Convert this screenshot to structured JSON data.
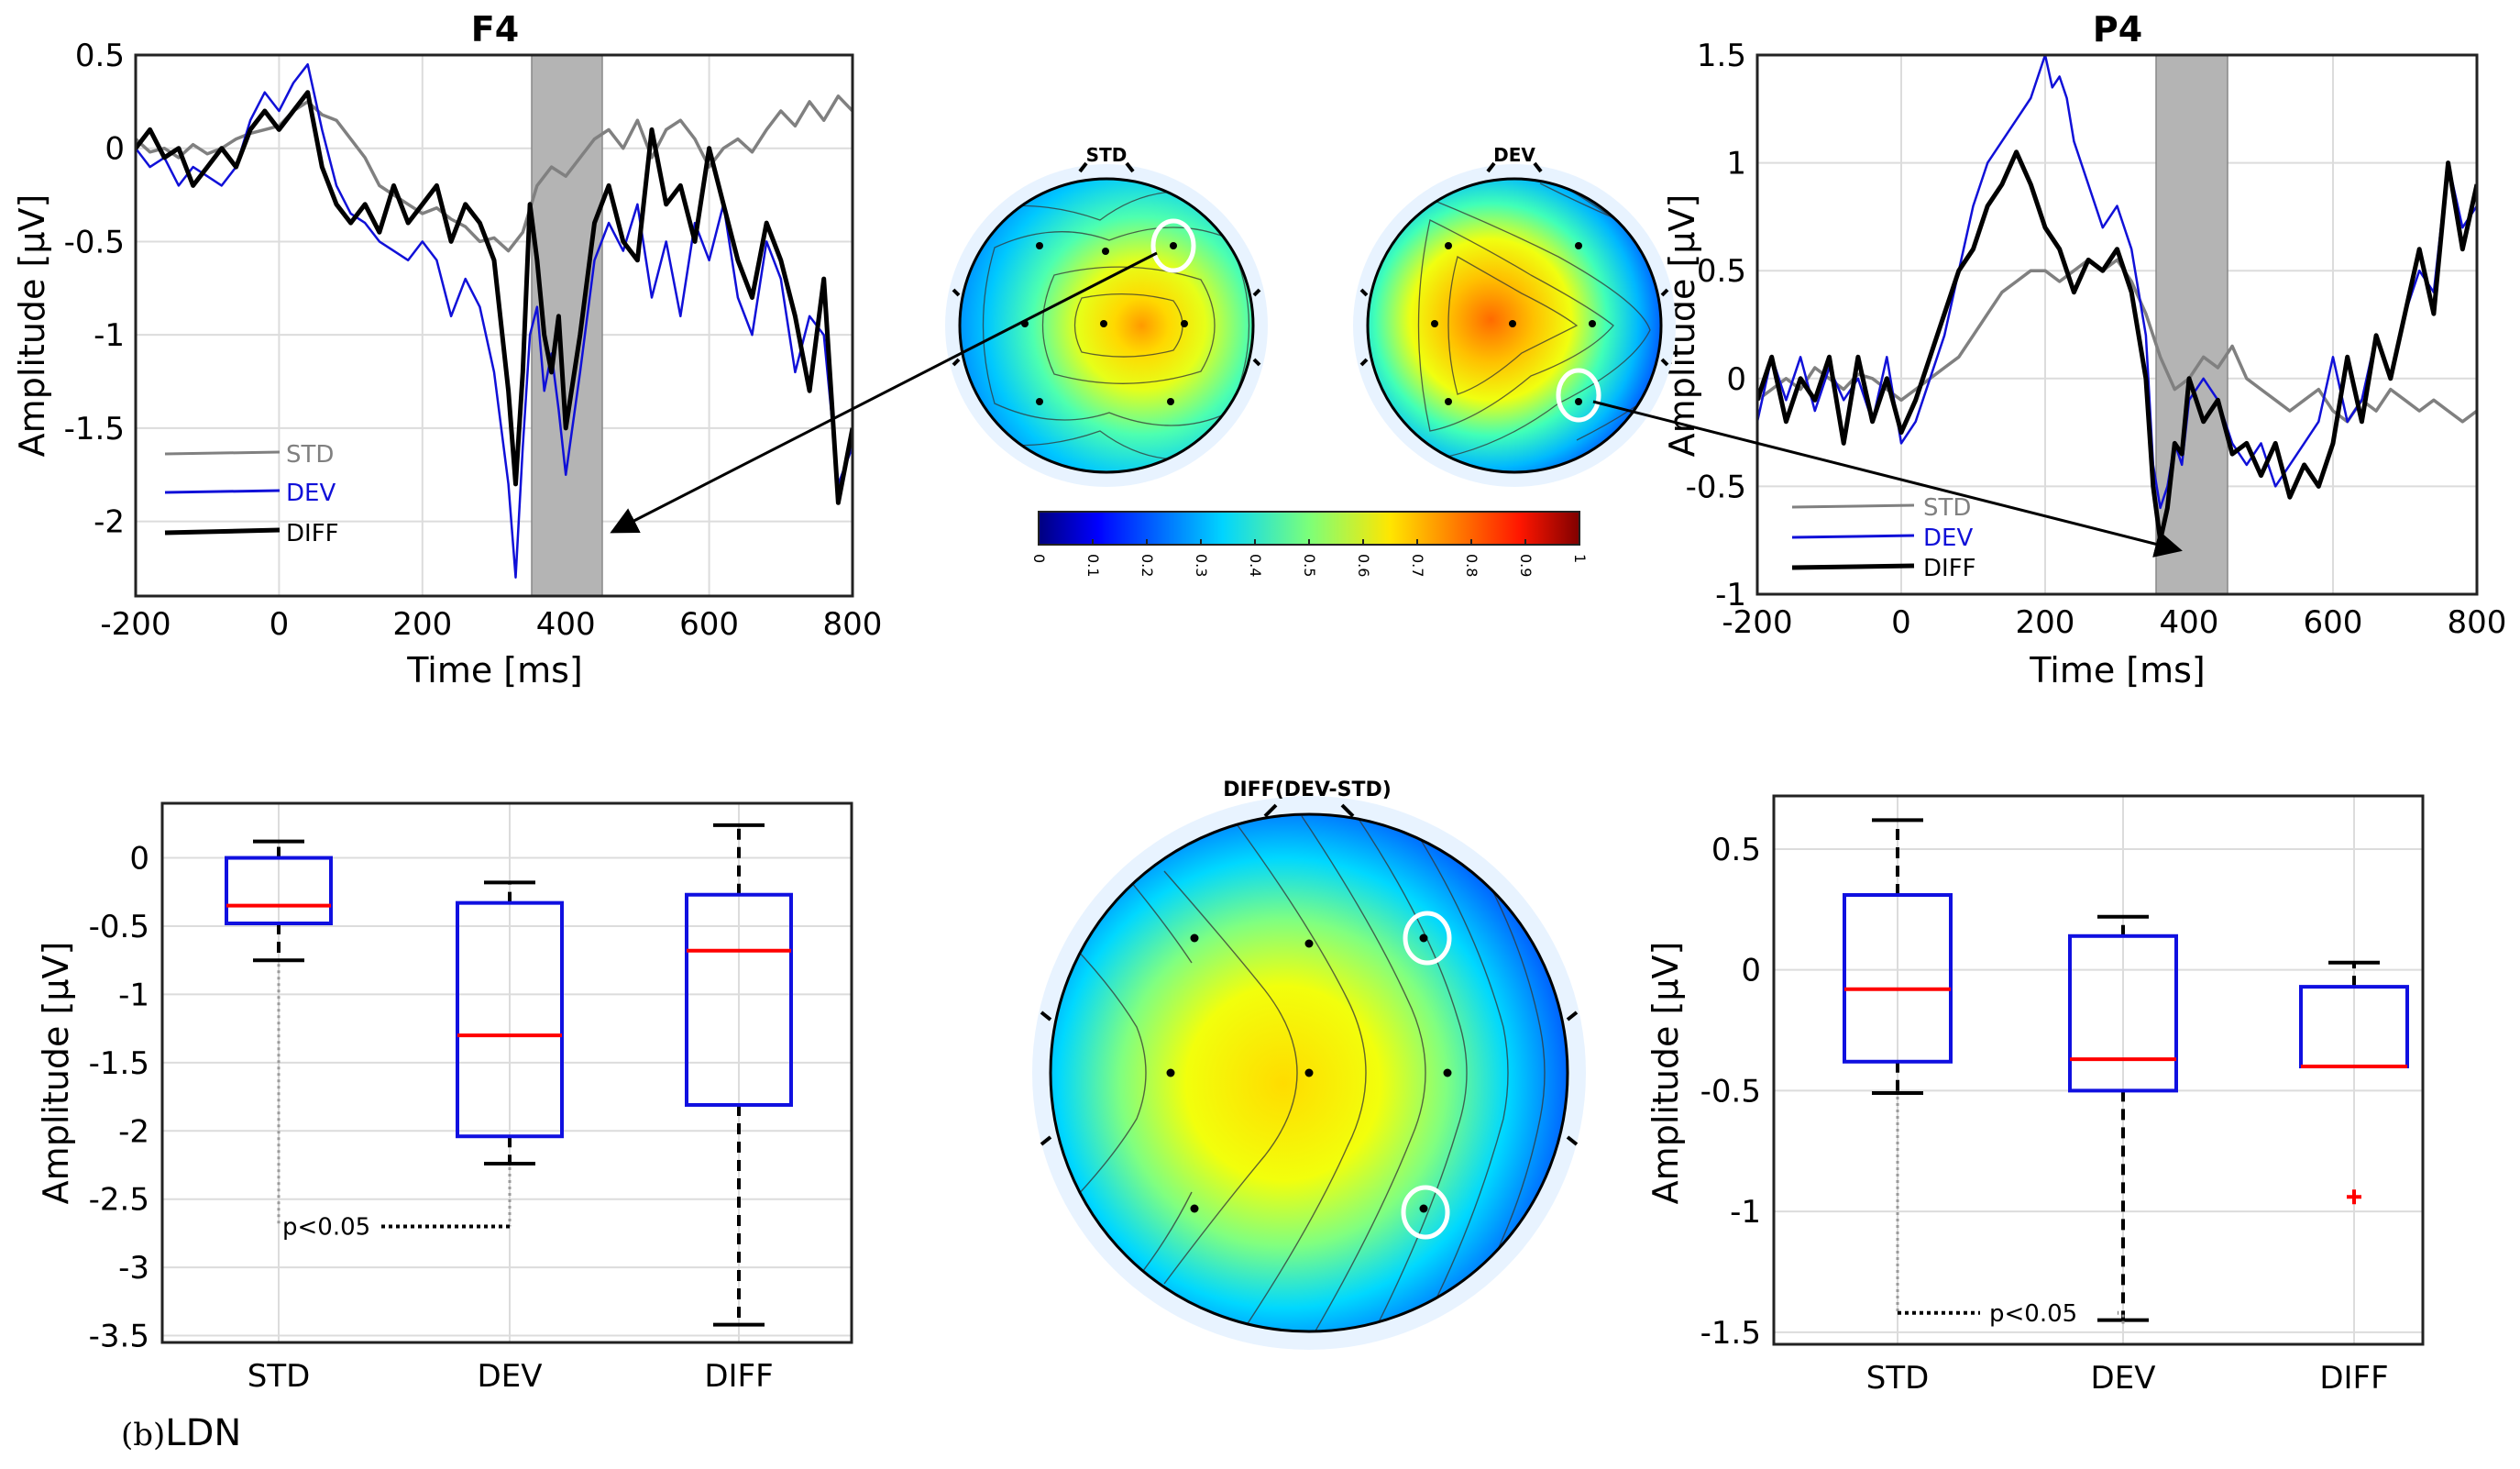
{
  "caption": {
    "prefix": "(b)",
    "text": "LDN"
  },
  "colors": {
    "std": "#808080",
    "dev": "#1010d8",
    "diff": "#000000",
    "median": "#ff0000",
    "box": "#1010e0",
    "window": "#b4b4b4"
  },
  "chart_data": [
    {
      "id": "f4",
      "type": "line",
      "title": "F4",
      "xlabel": "Time [ms]",
      "ylabel": "Amplitude [µV]",
      "xlim": [
        -200,
        800
      ],
      "ylim": [
        -2.4,
        0.5
      ],
      "xticks": [
        -200,
        0,
        200,
        400,
        600,
        800
      ],
      "xtick_labels": [
        "-200",
        "0",
        "200",
        "400",
        "600",
        "800"
      ],
      "yticks": [
        0.5,
        0,
        -0.5,
        -1,
        -1.5,
        -2
      ],
      "ytick_labels": [
        "0.5",
        "0",
        "-0.5",
        "-1",
        "-1.5",
        "-2"
      ],
      "highlight_window": [
        350,
        450
      ],
      "legend": [
        "STD",
        "DEV",
        "DIFF"
      ],
      "series": [
        {
          "name": "STD",
          "x": [
            -200,
            -180,
            -160,
            -140,
            -120,
            -100,
            -80,
            -60,
            -40,
            -20,
            0,
            20,
            40,
            60,
            80,
            100,
            120,
            140,
            160,
            180,
            200,
            220,
            240,
            260,
            280,
            300,
            320,
            340,
            360,
            380,
            400,
            420,
            440,
            460,
            480,
            500,
            520,
            540,
            560,
            580,
            600,
            620,
            640,
            660,
            680,
            700,
            720,
            740,
            760,
            780,
            800
          ],
          "y": [
            0.05,
            -0.02,
            0.0,
            -0.05,
            0.02,
            -0.03,
            0.0,
            0.05,
            0.08,
            0.1,
            0.12,
            0.2,
            0.25,
            0.18,
            0.15,
            0.05,
            -0.05,
            -0.2,
            -0.25,
            -0.3,
            -0.35,
            -0.32,
            -0.38,
            -0.42,
            -0.5,
            -0.48,
            -0.55,
            -0.45,
            -0.2,
            -0.1,
            -0.15,
            -0.05,
            0.05,
            0.1,
            0.0,
            0.15,
            -0.05,
            0.1,
            0.15,
            0.05,
            -0.1,
            0.0,
            0.05,
            -0.02,
            0.1,
            0.2,
            0.12,
            0.25,
            0.15,
            0.28,
            0.2
          ]
        },
        {
          "name": "DEV",
          "x": [
            -200,
            -180,
            -160,
            -140,
            -120,
            -100,
            -80,
            -60,
            -40,
            -20,
            0,
            20,
            40,
            60,
            80,
            100,
            120,
            140,
            160,
            180,
            200,
            220,
            240,
            260,
            280,
            300,
            320,
            330,
            340,
            350,
            360,
            370,
            380,
            390,
            400,
            420,
            440,
            460,
            480,
            500,
            520,
            540,
            560,
            580,
            600,
            620,
            640,
            660,
            680,
            700,
            720,
            740,
            760,
            780,
            800
          ],
          "y": [
            0.0,
            -0.1,
            -0.05,
            -0.2,
            -0.1,
            -0.15,
            -0.2,
            -0.1,
            0.15,
            0.3,
            0.2,
            0.35,
            0.45,
            0.1,
            -0.2,
            -0.35,
            -0.4,
            -0.5,
            -0.55,
            -0.6,
            -0.5,
            -0.6,
            -0.9,
            -0.7,
            -0.85,
            -1.2,
            -1.8,
            -2.3,
            -1.6,
            -1.0,
            -0.85,
            -1.3,
            -1.1,
            -1.4,
            -1.75,
            -1.2,
            -0.6,
            -0.4,
            -0.55,
            -0.3,
            -0.8,
            -0.5,
            -0.9,
            -0.4,
            -0.6,
            -0.3,
            -0.8,
            -1.0,
            -0.5,
            -0.7,
            -1.2,
            -0.9,
            -1.0,
            -1.8,
            -1.6
          ]
        },
        {
          "name": "DIFF",
          "x": [
            -200,
            -180,
            -160,
            -140,
            -120,
            -100,
            -80,
            -60,
            -40,
            -20,
            0,
            20,
            40,
            60,
            80,
            100,
            120,
            140,
            160,
            180,
            200,
            220,
            240,
            260,
            280,
            300,
            320,
            330,
            340,
            350,
            360,
            370,
            380,
            390,
            400,
            420,
            440,
            460,
            480,
            500,
            520,
            540,
            560,
            580,
            600,
            620,
            640,
            660,
            680,
            700,
            720,
            740,
            760,
            780,
            800
          ],
          "y": [
            0.0,
            0.1,
            -0.05,
            0.0,
            -0.2,
            -0.1,
            0.0,
            -0.1,
            0.1,
            0.2,
            0.1,
            0.2,
            0.3,
            -0.1,
            -0.3,
            -0.4,
            -0.3,
            -0.45,
            -0.2,
            -0.4,
            -0.3,
            -0.2,
            -0.5,
            -0.3,
            -0.4,
            -0.6,
            -1.3,
            -1.8,
            -1.2,
            -0.3,
            -0.6,
            -1.0,
            -1.2,
            -0.9,
            -1.5,
            -1.0,
            -0.4,
            -0.2,
            -0.5,
            -0.6,
            0.1,
            -0.3,
            -0.2,
            -0.5,
            0.0,
            -0.3,
            -0.6,
            -0.8,
            -0.4,
            -0.6,
            -0.9,
            -1.3,
            -0.7,
            -1.9,
            -1.5
          ]
        }
      ]
    },
    {
      "id": "p4",
      "type": "line",
      "title": "P4",
      "xlabel": "Time [ms]",
      "ylabel": "Amplitude [µV]",
      "xlim": [
        -200,
        800
      ],
      "ylim": [
        -1,
        1.5
      ],
      "xticks": [
        -200,
        0,
        200,
        400,
        600,
        800
      ],
      "xtick_labels": [
        "-200",
        "0",
        "200",
        "400",
        "600",
        "800"
      ],
      "yticks": [
        1.5,
        1,
        0.5,
        0,
        -0.5,
        -1
      ],
      "ytick_labels": [
        "1.5",
        "1",
        "0.5",
        "0",
        "-0.5",
        "-1"
      ],
      "highlight_window": [
        350,
        450
      ],
      "legend": [
        "STD",
        "DEV",
        "DIFF"
      ],
      "series": [
        {
          "name": "STD",
          "x": [
            -200,
            -180,
            -160,
            -140,
            -120,
            -100,
            -80,
            -60,
            -40,
            -20,
            0,
            20,
            40,
            60,
            80,
            100,
            120,
            140,
            160,
            180,
            200,
            220,
            240,
            260,
            280,
            300,
            320,
            340,
            360,
            380,
            400,
            420,
            440,
            460,
            480,
            500,
            520,
            540,
            560,
            580,
            600,
            620,
            640,
            660,
            680,
            700,
            720,
            740,
            760,
            780,
            800
          ],
          "y": [
            -0.1,
            -0.05,
            0.0,
            -0.05,
            0.05,
            0.0,
            -0.05,
            0.02,
            0.0,
            -0.05,
            -0.1,
            -0.05,
            0.0,
            0.05,
            0.1,
            0.2,
            0.3,
            0.4,
            0.45,
            0.5,
            0.5,
            0.45,
            0.5,
            0.55,
            0.5,
            0.55,
            0.45,
            0.3,
            0.1,
            -0.05,
            0.0,
            0.1,
            0.05,
            0.15,
            0.0,
            -0.05,
            -0.1,
            -0.15,
            -0.1,
            -0.05,
            -0.15,
            -0.2,
            -0.1,
            -0.15,
            -0.05,
            -0.1,
            -0.15,
            -0.1,
            -0.15,
            -0.2,
            -0.15
          ]
        },
        {
          "name": "DEV",
          "x": [
            -200,
            -180,
            -160,
            -140,
            -120,
            -100,
            -80,
            -60,
            -40,
            -20,
            0,
            20,
            40,
            60,
            80,
            100,
            120,
            140,
            160,
            180,
            200,
            210,
            220,
            230,
            240,
            260,
            280,
            300,
            320,
            340,
            350,
            360,
            370,
            380,
            390,
            400,
            420,
            440,
            460,
            480,
            500,
            520,
            540,
            560,
            580,
            600,
            620,
            640,
            660,
            680,
            700,
            720,
            740,
            760,
            780,
            800
          ],
          "y": [
            -0.2,
            0.1,
            -0.1,
            0.1,
            -0.15,
            0.05,
            -0.1,
            0.0,
            -0.2,
            0.1,
            -0.3,
            -0.2,
            0.0,
            0.2,
            0.5,
            0.8,
            1.0,
            1.1,
            1.2,
            1.3,
            1.5,
            1.35,
            1.4,
            1.3,
            1.1,
            0.9,
            0.7,
            0.8,
            0.6,
            0.2,
            -0.4,
            -0.6,
            -0.5,
            -0.3,
            -0.4,
            -0.1,
            0.0,
            -0.1,
            -0.3,
            -0.4,
            -0.3,
            -0.5,
            -0.4,
            -0.3,
            -0.2,
            0.1,
            -0.2,
            -0.1,
            0.2,
            0.0,
            0.3,
            0.5,
            0.4,
            1.0,
            0.7,
            0.8
          ]
        },
        {
          "name": "DIFF",
          "x": [
            -200,
            -180,
            -160,
            -140,
            -120,
            -100,
            -80,
            -60,
            -40,
            -20,
            0,
            20,
            40,
            60,
            80,
            100,
            120,
            140,
            160,
            180,
            200,
            220,
            240,
            260,
            280,
            300,
            320,
            340,
            350,
            360,
            370,
            380,
            390,
            400,
            420,
            440,
            460,
            480,
            500,
            520,
            540,
            560,
            580,
            600,
            620,
            640,
            660,
            680,
            700,
            720,
            740,
            760,
            780,
            800
          ],
          "y": [
            -0.1,
            0.1,
            -0.2,
            0.0,
            -0.1,
            0.1,
            -0.3,
            0.1,
            -0.2,
            0.0,
            -0.25,
            -0.1,
            0.1,
            0.3,
            0.5,
            0.6,
            0.8,
            0.9,
            1.05,
            0.9,
            0.7,
            0.6,
            0.4,
            0.55,
            0.5,
            0.6,
            0.4,
            0.0,
            -0.5,
            -0.75,
            -0.6,
            -0.3,
            -0.35,
            0.0,
            -0.2,
            -0.1,
            -0.35,
            -0.3,
            -0.45,
            -0.3,
            -0.55,
            -0.4,
            -0.5,
            -0.3,
            0.1,
            -0.2,
            0.2,
            0.0,
            0.3,
            0.6,
            0.3,
            1.0,
            0.6,
            0.9
          ]
        }
      ]
    },
    {
      "id": "box-f4",
      "type": "box",
      "xlabel": "",
      "ylabel": "Amplitude [µV]",
      "ylim": [
        -3.55,
        0.4
      ],
      "yticks": [
        0,
        -0.5,
        -1,
        -1.5,
        -2,
        -2.5,
        -3,
        -3.5
      ],
      "ytick_labels": [
        "0",
        "-0.5",
        "-1",
        "-1.5",
        "-2",
        "-2.5",
        "-3",
        "-3.5"
      ],
      "categories": [
        "STD",
        "DEV",
        "DIFF"
      ],
      "boxes": [
        {
          "name": "STD",
          "whisker_low": -0.75,
          "q1": -0.48,
          "median": -0.35,
          "q3": 0.0,
          "whisker_high": 0.12
        },
        {
          "name": "DEV",
          "whisker_low": -2.24,
          "q1": -2.04,
          "median": -1.3,
          "q3": -0.33,
          "whisker_high": -0.18
        },
        {
          "name": "DIFF",
          "whisker_low": -3.42,
          "q1": -1.81,
          "median": -0.68,
          "q3": -0.27,
          "whisker_high": 0.24
        }
      ],
      "significance": {
        "label": "p<0.05",
        "from": "STD",
        "to": "DEV",
        "y": -2.7
      },
      "outliers": []
    },
    {
      "id": "box-p4",
      "type": "box",
      "xlabel": "",
      "ylabel": "Amplitude [µV]",
      "ylim": [
        -1.55,
        0.72
      ],
      "yticks": [
        0.5,
        0,
        -0.5,
        -1,
        -1.5
      ],
      "ytick_labels": [
        "0.5",
        "0",
        "-0.5",
        "-1",
        "-1.5"
      ],
      "categories": [
        "STD",
        "DEV",
        "DIFF"
      ],
      "boxes": [
        {
          "name": "STD",
          "whisker_low": -0.51,
          "q1": -0.38,
          "median": -0.08,
          "q3": 0.31,
          "whisker_high": 0.62
        },
        {
          "name": "DEV",
          "whisker_low": -1.45,
          "q1": -0.5,
          "median": -0.37,
          "q3": 0.14,
          "whisker_high": 0.22
        },
        {
          "name": "DIFF",
          "whisker_low": -0.4,
          "q1": -0.4,
          "median": -0.4,
          "q3": -0.07,
          "whisker_high": 0.03
        }
      ],
      "significance": {
        "label": "p<0.05",
        "from": "STD",
        "to": "DEV",
        "y": -1.42
      },
      "outliers": [
        {
          "category": "DIFF",
          "value": -0.94
        }
      ]
    },
    {
      "id": "topo-std",
      "type": "heatmap",
      "title": "STD",
      "hot_spot": "center-right",
      "peak_value": 0.75
    },
    {
      "id": "topo-dev",
      "type": "heatmap",
      "title": "DEV",
      "hot_spot": "center",
      "peak_value": 0.78
    },
    {
      "id": "topo-diff",
      "type": "heatmap",
      "title": "DIFF(DEV-STD)",
      "hot_spot": "center-left",
      "peak_value": 0.62
    },
    {
      "id": "colorbar",
      "type": "colorbar",
      "range": [
        0,
        1
      ],
      "ticks": [
        0,
        0.1,
        0.2,
        0.3,
        0.4,
        0.5,
        0.6,
        0.7,
        0.8,
        0.9,
        1
      ],
      "tick_labels": [
        "0",
        "0.1",
        "0.2",
        "0.3",
        "0.4",
        "0.5",
        "0.6",
        "0.7",
        "0.8",
        "0.9",
        "1"
      ],
      "colormap": "jet"
    }
  ]
}
